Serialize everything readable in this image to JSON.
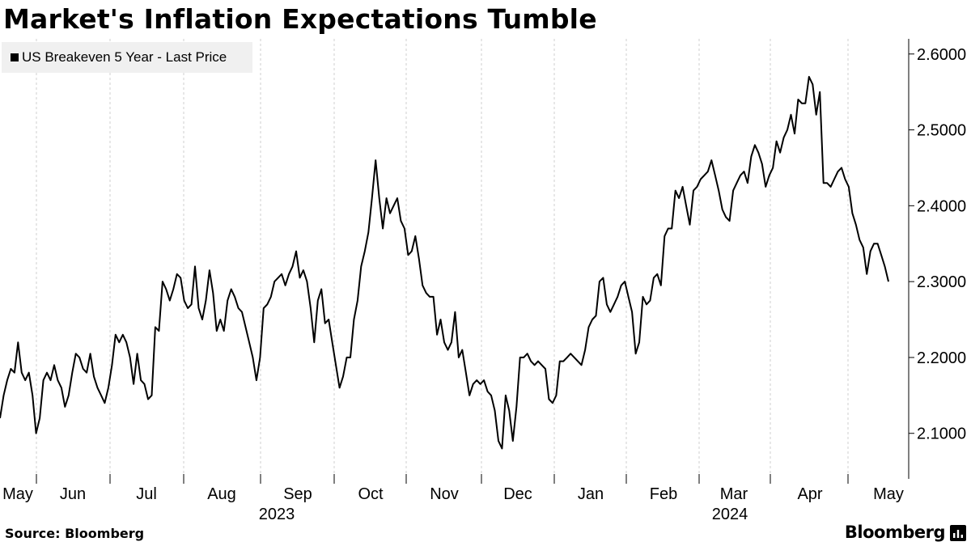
{
  "header": {
    "title": "Market's Inflation Expectations Tumble"
  },
  "legend": {
    "label": "US Breakeven 5 Year - Last Price"
  },
  "footer": {
    "source": "Source: Bloomberg",
    "logo_text": "Bloomberg"
  },
  "chart_data": {
    "type": "line",
    "title": "Market's Inflation Expectations Tumble",
    "xlabel": "",
    "ylabel": "",
    "ylim": [
      2.04,
      2.62
    ],
    "y_axis_side": "right",
    "grid": "vertical dashed at month boundaries",
    "legend_placement": "top-left",
    "line_color": "#000000",
    "x_ticks": [
      "May",
      "Jun",
      "Jul",
      "Aug",
      "Sep",
      "Oct",
      "Nov",
      "Dec",
      "Jan",
      "Feb",
      "Mar",
      "Apr",
      "May"
    ],
    "x_year_labels": [
      "2023",
      "2024"
    ],
    "y_ticks": [
      "2.1000",
      "2.2000",
      "2.3000",
      "2.4000",
      "2.5000",
      "2.6000"
    ],
    "series": [
      {
        "name": "US Breakeven 5 Year - Last Price",
        "x_start": "2023-05-01",
        "x_end": "2024-05-03",
        "values": [
          2.12,
          2.15,
          2.17,
          2.185,
          2.18,
          2.22,
          2.18,
          2.17,
          2.18,
          2.15,
          2.1,
          2.12,
          2.17,
          2.18,
          2.17,
          2.19,
          2.17,
          2.16,
          2.135,
          2.15,
          2.18,
          2.205,
          2.2,
          2.185,
          2.18,
          2.205,
          2.175,
          2.16,
          2.15,
          2.14,
          2.16,
          2.19,
          2.23,
          2.22,
          2.23,
          2.22,
          2.2,
          2.165,
          2.205,
          2.17,
          2.165,
          2.145,
          2.15,
          2.24,
          2.235,
          2.3,
          2.29,
          2.275,
          2.29,
          2.31,
          2.305,
          2.275,
          2.265,
          2.27,
          2.32,
          2.265,
          2.25,
          2.275,
          2.315,
          2.285,
          2.235,
          2.25,
          2.235,
          2.275,
          2.29,
          2.28,
          2.265,
          2.26,
          2.24,
          2.22,
          2.2,
          2.17,
          2.2,
          2.265,
          2.27,
          2.28,
          2.3,
          2.305,
          2.31,
          2.295,
          2.31,
          2.32,
          2.34,
          2.305,
          2.315,
          2.3,
          2.265,
          2.22,
          2.275,
          2.29,
          2.245,
          2.25,
          2.22,
          2.19,
          2.16,
          2.175,
          2.2,
          2.2,
          2.25,
          2.275,
          2.32,
          2.34,
          2.365,
          2.41,
          2.46,
          2.41,
          2.37,
          2.41,
          2.39,
          2.4,
          2.41,
          2.38,
          2.37,
          2.335,
          2.34,
          2.36,
          2.33,
          2.295,
          2.285,
          2.28,
          2.28,
          2.23,
          2.25,
          2.22,
          2.21,
          2.22,
          2.26,
          2.2,
          2.21,
          2.18,
          2.15,
          2.165,
          2.17,
          2.165,
          2.17,
          2.155,
          2.15,
          2.13,
          2.09,
          2.08,
          2.15,
          2.13,
          2.09,
          2.135,
          2.2,
          2.2,
          2.205,
          2.195,
          2.19,
          2.195,
          2.19,
          2.185,
          2.145,
          2.14,
          2.15,
          2.195,
          2.195,
          2.2,
          2.205,
          2.2,
          2.195,
          2.19,
          2.21,
          2.24,
          2.25,
          2.255,
          2.3,
          2.305,
          2.27,
          2.26,
          2.27,
          2.28,
          2.295,
          2.3,
          2.28,
          2.26,
          2.205,
          2.22,
          2.28,
          2.27,
          2.275,
          2.305,
          2.31,
          2.295,
          2.36,
          2.37,
          2.37,
          2.42,
          2.41,
          2.425,
          2.4,
          2.375,
          2.42,
          2.425,
          2.435,
          2.44,
          2.445,
          2.46,
          2.44,
          2.42,
          2.395,
          2.385,
          2.38,
          2.42,
          2.43,
          2.44,
          2.445,
          2.43,
          2.465,
          2.48,
          2.47,
          2.455,
          2.425,
          2.44,
          2.45,
          2.485,
          2.47,
          2.49,
          2.5,
          2.52,
          2.495,
          2.54,
          2.535,
          2.535,
          2.57,
          2.56,
          2.52,
          2.55,
          2.43,
          2.43,
          2.425,
          2.435,
          2.445,
          2.45,
          2.435,
          2.425,
          2.39,
          2.375,
          2.355,
          2.345,
          2.31,
          2.34,
          2.35,
          2.35,
          2.335,
          2.32,
          2.3
        ]
      }
    ]
  }
}
